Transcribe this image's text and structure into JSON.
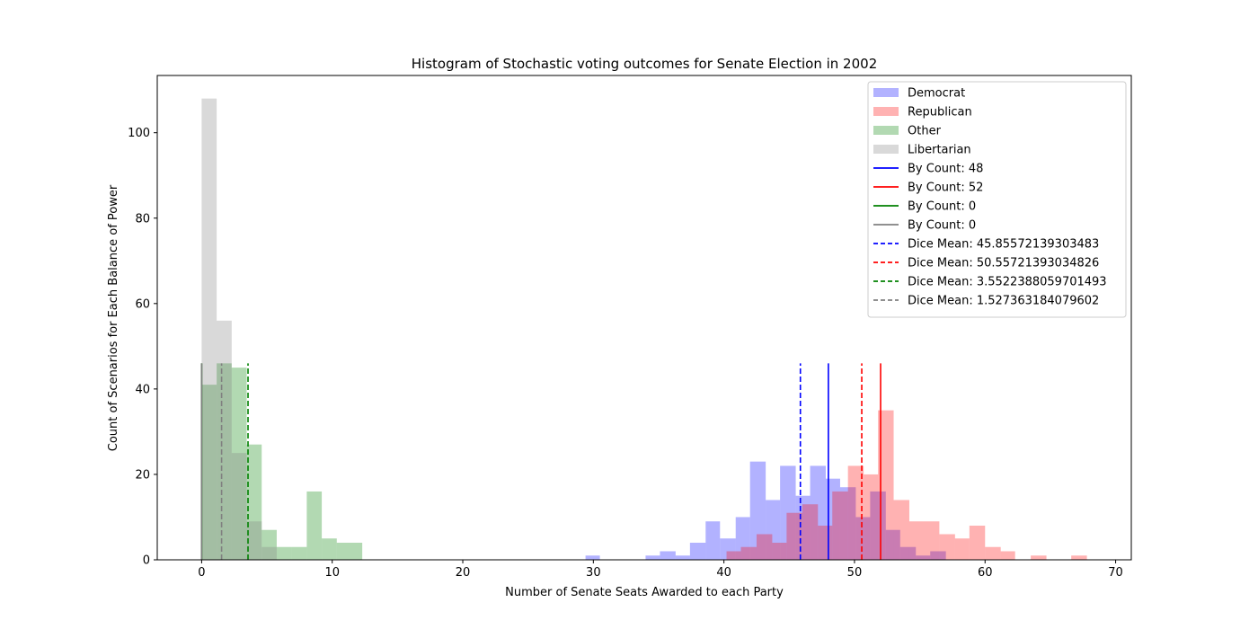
{
  "chart_data": {
    "type": "histogram",
    "title": "Histogram of Stochastic voting outcomes for Senate Election in 2002",
    "xlabel": "Number of Senate Seats Awarded to each Party",
    "ylabel": "Count of Scenarios for Each Balance of Power",
    "xlim": [
      -3.4,
      71.2
    ],
    "ylim": [
      0,
      113.4
    ],
    "xticks": [
      0,
      10,
      20,
      30,
      40,
      50,
      60,
      70
    ],
    "yticks": [
      0,
      20,
      40,
      60,
      80,
      100
    ],
    "grid": false,
    "legend_position": "top-right",
    "series": [
      {
        "name": "Democrat",
        "color": "#0000ff",
        "opacity": 0.3,
        "bins": [
          {
            "x0": 29.4,
            "x1": 30.5,
            "count": 1
          },
          {
            "x0": 34.0,
            "x1": 35.1,
            "count": 1
          },
          {
            "x0": 35.1,
            "x1": 36.3,
            "count": 2
          },
          {
            "x0": 36.3,
            "x1": 37.4,
            "count": 1
          },
          {
            "x0": 37.4,
            "x1": 38.6,
            "count": 4
          },
          {
            "x0": 38.6,
            "x1": 39.7,
            "count": 9
          },
          {
            "x0": 39.7,
            "x1": 40.9,
            "count": 5
          },
          {
            "x0": 40.9,
            "x1": 42.0,
            "count": 10
          },
          {
            "x0": 42.0,
            "x1": 43.2,
            "count": 23
          },
          {
            "x0": 43.2,
            "x1": 44.3,
            "count": 14
          },
          {
            "x0": 44.3,
            "x1": 45.5,
            "count": 22
          },
          {
            "x0": 45.5,
            "x1": 46.6,
            "count": 15
          },
          {
            "x0": 46.6,
            "x1": 47.8,
            "count": 22
          },
          {
            "x0": 47.8,
            "x1": 48.9,
            "count": 19
          },
          {
            "x0": 48.9,
            "x1": 50.1,
            "count": 17
          },
          {
            "x0": 50.1,
            "x1": 51.2,
            "count": 10
          },
          {
            "x0": 51.2,
            "x1": 52.4,
            "count": 16
          },
          {
            "x0": 52.4,
            "x1": 53.5,
            "count": 7
          },
          {
            "x0": 53.5,
            "x1": 54.7,
            "count": 3
          },
          {
            "x0": 54.7,
            "x1": 55.8,
            "count": 1
          },
          {
            "x0": 55.8,
            "x1": 57.0,
            "count": 2
          }
        ]
      },
      {
        "name": "Republican",
        "color": "#ff0000",
        "opacity": 0.3,
        "bins": [
          {
            "x0": 40.2,
            "x1": 41.3,
            "count": 2
          },
          {
            "x0": 41.3,
            "x1": 42.5,
            "count": 3
          },
          {
            "x0": 42.5,
            "x1": 43.7,
            "count": 6
          },
          {
            "x0": 43.7,
            "x1": 44.8,
            "count": 4
          },
          {
            "x0": 44.8,
            "x1": 46.0,
            "count": 11
          },
          {
            "x0": 46.0,
            "x1": 47.2,
            "count": 13
          },
          {
            "x0": 47.2,
            "x1": 48.3,
            "count": 8
          },
          {
            "x0": 48.3,
            "x1": 49.5,
            "count": 16
          },
          {
            "x0": 49.5,
            "x1": 50.7,
            "count": 22
          },
          {
            "x0": 50.7,
            "x1": 51.8,
            "count": 20
          },
          {
            "x0": 51.8,
            "x1": 53.0,
            "count": 35
          },
          {
            "x0": 53.0,
            "x1": 54.2,
            "count": 14
          },
          {
            "x0": 54.2,
            "x1": 55.3,
            "count": 9
          },
          {
            "x0": 55.3,
            "x1": 56.5,
            "count": 9
          },
          {
            "x0": 56.5,
            "x1": 57.7,
            "count": 6
          },
          {
            "x0": 57.7,
            "x1": 58.8,
            "count": 5
          },
          {
            "x0": 58.8,
            "x1": 60.0,
            "count": 8
          },
          {
            "x0": 60.0,
            "x1": 61.2,
            "count": 3
          },
          {
            "x0": 61.2,
            "x1": 62.3,
            "count": 2
          },
          {
            "x0": 63.5,
            "x1": 64.7,
            "count": 1
          },
          {
            "x0": 66.6,
            "x1": 67.8,
            "count": 1
          }
        ]
      },
      {
        "name": "Other",
        "color": "#008000",
        "opacity": 0.3,
        "bins": [
          {
            "x0": 0.0,
            "x1": 1.15,
            "count": 41
          },
          {
            "x0": 1.15,
            "x1": 2.3,
            "count": 46
          },
          {
            "x0": 2.3,
            "x1": 3.45,
            "count": 45
          },
          {
            "x0": 3.45,
            "x1": 4.6,
            "count": 27
          },
          {
            "x0": 4.6,
            "x1": 5.75,
            "count": 7
          },
          {
            "x0": 5.75,
            "x1": 6.9,
            "count": 3
          },
          {
            "x0": 6.9,
            "x1": 8.05,
            "count": 3
          },
          {
            "x0": 8.05,
            "x1": 9.2,
            "count": 16
          },
          {
            "x0": 9.2,
            "x1": 10.35,
            "count": 5
          },
          {
            "x0": 10.35,
            "x1": 12.3,
            "count": 4
          }
        ]
      },
      {
        "name": "Libertarian",
        "color": "#808080",
        "opacity": 0.3,
        "bins": [
          {
            "x0": 0.0,
            "x1": 1.15,
            "count": 108
          },
          {
            "x0": 1.15,
            "x1": 2.3,
            "count": 56
          },
          {
            "x0": 2.3,
            "x1": 3.45,
            "count": 25
          },
          {
            "x0": 3.45,
            "x1": 4.6,
            "count": 9
          },
          {
            "x0": 4.6,
            "x1": 5.75,
            "count": 3
          }
        ]
      }
    ],
    "vlines": [
      {
        "label": "By Count: 48",
        "x": 48,
        "color": "#0000ff",
        "dash": false,
        "ymax": 46
      },
      {
        "label": "By Count: 52",
        "x": 52,
        "color": "#ff0000",
        "dash": false,
        "ymax": 46
      },
      {
        "label": "By Count: 0",
        "x": 0,
        "color": "#008000",
        "dash": false,
        "ymax": 46
      },
      {
        "label": "By Count: 0",
        "x": 0,
        "color": "#808080",
        "dash": false,
        "ymax": 46
      },
      {
        "label": "Dice Mean: 45.85572139303483",
        "x": 45.85572139303483,
        "color": "#0000ff",
        "dash": true,
        "ymax": 46
      },
      {
        "label": "Dice Mean: 50.55721393034826",
        "x": 50.55721393034826,
        "color": "#ff0000",
        "dash": true,
        "ymax": 46
      },
      {
        "label": "Dice Mean: 3.5522388059701493",
        "x": 3.5522388059701493,
        "color": "#008000",
        "dash": true,
        "ymax": 46
      },
      {
        "label": "Dice Mean: 1.527363184079602",
        "x": 1.527363184079602,
        "color": "#808080",
        "dash": true,
        "ymax": 46
      }
    ]
  }
}
